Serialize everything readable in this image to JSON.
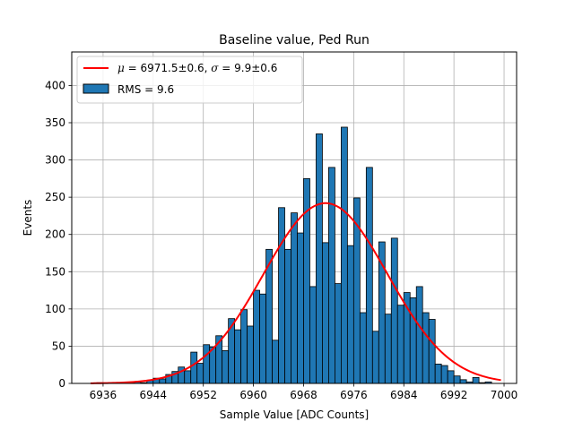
{
  "chart_data": {
    "type": "bar",
    "title": "Baseline value, Ped Run",
    "xlabel": "Sample Value [ADC Counts]",
    "ylabel": "Events",
    "xlim": [
      6931,
      7002
    ],
    "ylim": [
      0,
      445
    ],
    "xticks": [
      6936,
      6944,
      6952,
      6960,
      6968,
      6976,
      6984,
      6992,
      7000
    ],
    "yticks": [
      0,
      50,
      100,
      150,
      200,
      250,
      300,
      350,
      400
    ],
    "grid": true,
    "legend_position": "top-left",
    "histogram": {
      "name": "RMS = 9.6",
      "color": "#1f77b4",
      "edge_color": "#000000",
      "bin_width": 1,
      "bin_starts": [
        6935,
        6936,
        6937,
        6938,
        6939,
        6940,
        6941,
        6942,
        6943,
        6944,
        6945,
        6946,
        6947,
        6948,
        6949,
        6950,
        6951,
        6952,
        6953,
        6954,
        6955,
        6956,
        6957,
        6958,
        6959,
        6960,
        6961,
        6962,
        6963,
        6964,
        6965,
        6966,
        6967,
        6968,
        6969,
        6970,
        6971,
        6972,
        6973,
        6974,
        6975,
        6976,
        6977,
        6978,
        6979,
        6980,
        6981,
        6982,
        6983,
        6984,
        6985,
        6986,
        6987,
        6988,
        6989,
        6990,
        6991,
        6992,
        6993,
        6994,
        6995,
        6996,
        6997,
        6998
      ],
      "values": [
        1,
        0,
        0,
        0,
        0,
        1,
        2,
        1,
        4,
        7,
        6,
        12,
        16,
        22,
        17,
        42,
        27,
        52,
        49,
        64,
        44,
        87,
        72,
        99,
        77,
        125,
        120,
        180,
        58,
        236,
        180,
        229,
        202,
        275,
        130,
        335,
        189,
        290,
        134,
        344,
        185,
        249,
        95,
        290,
        70,
        190,
        93,
        195,
        105,
        122,
        115,
        130,
        95,
        86,
        26,
        24,
        17,
        10,
        5,
        2,
        8,
        1,
        2,
        0
      ]
    },
    "fit": {
      "name": "μ = 6971.5±0.6, σ = 9.9±0.6",
      "color": "#ff0000",
      "mu": 6971.5,
      "sigma": 9.9,
      "amplitude": 242,
      "x_range": [
        6934,
        6999.5
      ]
    }
  },
  "legend": {
    "fit_mu_symbol": "μ",
    "fit_eq1": " = 6971.5±0.6, ",
    "fit_sigma_symbol": "σ",
    "fit_eq2": " = 9.9±0.6",
    "hist_label": "RMS = 9.6"
  }
}
